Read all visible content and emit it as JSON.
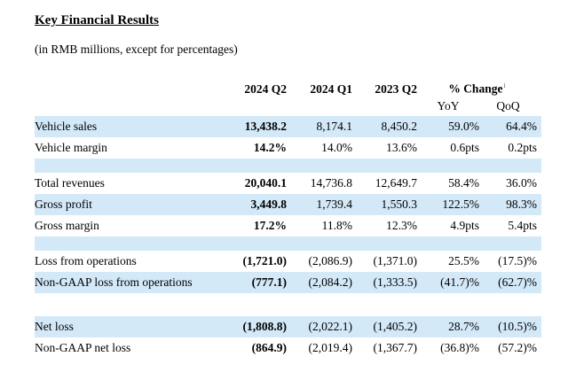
{
  "page": {
    "title": "Key Financial Results",
    "subtitle": "(in RMB millions, except for percentages)"
  },
  "table": {
    "period_headers": [
      "2024 Q2",
      "2024 Q1",
      "2023 Q2"
    ],
    "change_header": {
      "label": "% Change",
      "footnote_marker": "i",
      "subcolumns": [
        "YoY",
        "QoQ"
      ]
    },
    "rows": [
      {
        "type": "data",
        "shaded": true,
        "label": "Vehicle sales",
        "values": [
          "13,438.2",
          "8,174.1",
          "8,450.2",
          "59.0%",
          "64.4%"
        ]
      },
      {
        "type": "data",
        "shaded": false,
        "label": "Vehicle margin",
        "values": [
          "14.2%",
          "14.0%",
          "13.6%",
          "0.6pts",
          "0.2pts"
        ]
      },
      {
        "type": "spacer",
        "shaded": true
      },
      {
        "type": "data",
        "shaded": false,
        "label": "Total revenues",
        "values": [
          "20,040.1",
          "14,736.8",
          "12,649.7",
          "58.4%",
          "36.0%"
        ]
      },
      {
        "type": "data",
        "shaded": true,
        "label": "Gross profit",
        "values": [
          "3,449.8",
          "1,739.4",
          "1,550.3",
          "122.5%",
          "98.3%"
        ]
      },
      {
        "type": "data",
        "shaded": false,
        "label": "Gross margin",
        "values": [
          "17.2%",
          "11.8%",
          "12.3%",
          "4.9pts",
          "5.4pts"
        ]
      },
      {
        "type": "spacer",
        "shaded": true
      },
      {
        "type": "data",
        "shaded": false,
        "label": "Loss from operations",
        "values": [
          "(1,721.0)",
          "(2,086.9)",
          "(1,371.0)",
          "25.5%",
          "(17.5)%"
        ]
      },
      {
        "type": "data",
        "shaded": true,
        "label": "Non-GAAP loss from operations",
        "values": [
          "(777.1)",
          "(2,084.2)",
          "(1,333.5)",
          "(41.7)%",
          "(62.7)%"
        ]
      },
      {
        "type": "spacer",
        "shaded": false
      },
      {
        "type": "data",
        "shaded": true,
        "label": "Net loss",
        "values": [
          "(1,808.8)",
          "(2,022.1)",
          "(1,405.2)",
          "28.7%",
          "(10.5)%"
        ]
      },
      {
        "type": "data",
        "shaded": false,
        "label": "Non-GAAP net loss",
        "values": [
          "(864.9)",
          "(2,019.4)",
          "(1,367.7)",
          "(36.8)%",
          "(57.2)%"
        ]
      }
    ]
  },
  "colors": {
    "row_highlight": "#d3e9f8",
    "text": "#000000"
  }
}
